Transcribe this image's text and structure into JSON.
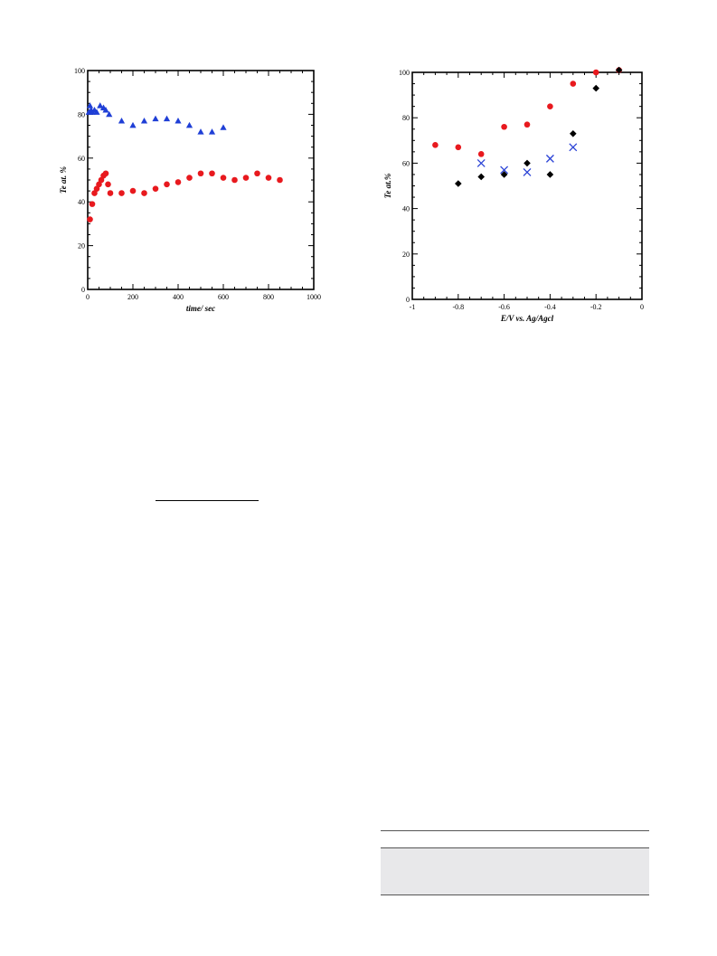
{
  "chart_data": [
    {
      "type": "scatter",
      "title": "",
      "xlabel": "time/ sec",
      "ylabel": "Te at. %",
      "xlim": [
        0,
        1000
      ],
      "ylim": [
        0,
        100
      ],
      "xticks": [
        "0",
        "200",
        "400",
        "600",
        "800",
        "1000"
      ],
      "yticks": [
        "0",
        "20",
        "40",
        "60",
        "80",
        "100"
      ],
      "grid": false,
      "legend": "none",
      "series": [
        {
          "marker": "triangle",
          "color": "#1f3fd6",
          "points": [
            [
              5,
              81
            ],
            [
              10,
              84
            ],
            [
              15,
              82
            ],
            [
              20,
              81
            ],
            [
              30,
              82
            ],
            [
              40,
              81
            ],
            [
              55,
              84
            ],
            [
              70,
              83
            ],
            [
              80,
              82
            ],
            [
              95,
              80
            ],
            [
              150,
              77
            ],
            [
              200,
              75
            ],
            [
              250,
              77
            ],
            [
              300,
              78
            ],
            [
              350,
              78
            ],
            [
              400,
              77
            ],
            [
              450,
              75
            ],
            [
              500,
              72
            ],
            [
              550,
              72
            ],
            [
              600,
              74
            ]
          ]
        },
        {
          "marker": "circle",
          "color": "#e8191e",
          "points": [
            [
              10,
              32
            ],
            [
              20,
              39
            ],
            [
              30,
              44
            ],
            [
              40,
              46
            ],
            [
              50,
              48
            ],
            [
              60,
              50
            ],
            [
              70,
              52
            ],
            [
              80,
              53
            ],
            [
              90,
              48
            ],
            [
              100,
              44
            ],
            [
              150,
              44
            ],
            [
              200,
              45
            ],
            [
              250,
              44
            ],
            [
              300,
              46
            ],
            [
              350,
              48
            ],
            [
              400,
              49
            ],
            [
              450,
              51
            ],
            [
              500,
              53
            ],
            [
              550,
              53
            ],
            [
              600,
              51
            ],
            [
              650,
              50
            ],
            [
              700,
              51
            ],
            [
              750,
              53
            ],
            [
              800,
              51
            ],
            [
              850,
              50
            ]
          ]
        }
      ]
    },
    {
      "type": "scatter",
      "title": "",
      "xlabel": "E/V vs. Ag/Agcl",
      "ylabel": "Te at.%",
      "xlim": [
        -1,
        0
      ],
      "ylim": [
        0,
        100
      ],
      "xticks": [
        "-1",
        "-0.8",
        "-0.6",
        "-0.4",
        "-0.2",
        "0"
      ],
      "yticks": [
        "0",
        "20",
        "40",
        "60",
        "80",
        "100"
      ],
      "grid": false,
      "legend": "none",
      "series": [
        {
          "marker": "circle",
          "color": "#e8191e",
          "points": [
            [
              -0.9,
              68
            ],
            [
              -0.8,
              67
            ],
            [
              -0.7,
              64
            ],
            [
              -0.6,
              76
            ],
            [
              -0.5,
              77
            ],
            [
              -0.4,
              85
            ],
            [
              -0.3,
              95
            ],
            [
              -0.2,
              100
            ],
            [
              -0.1,
              101
            ]
          ]
        },
        {
          "marker": "diamond",
          "color": "#000000",
          "points": [
            [
              -0.8,
              51
            ],
            [
              -0.7,
              54
            ],
            [
              -0.6,
              55
            ],
            [
              -0.5,
              60
            ],
            [
              -0.4,
              55
            ],
            [
              -0.3,
              73
            ],
            [
              -0.2,
              93
            ],
            [
              -0.1,
              101
            ]
          ]
        },
        {
          "marker": "x",
          "color": "#2b43d6",
          "points": [
            [
              -0.7,
              60
            ],
            [
              -0.6,
              57
            ],
            [
              -0.5,
              56
            ],
            [
              -0.4,
              62
            ],
            [
              -0.3,
              67
            ]
          ]
        }
      ]
    }
  ]
}
